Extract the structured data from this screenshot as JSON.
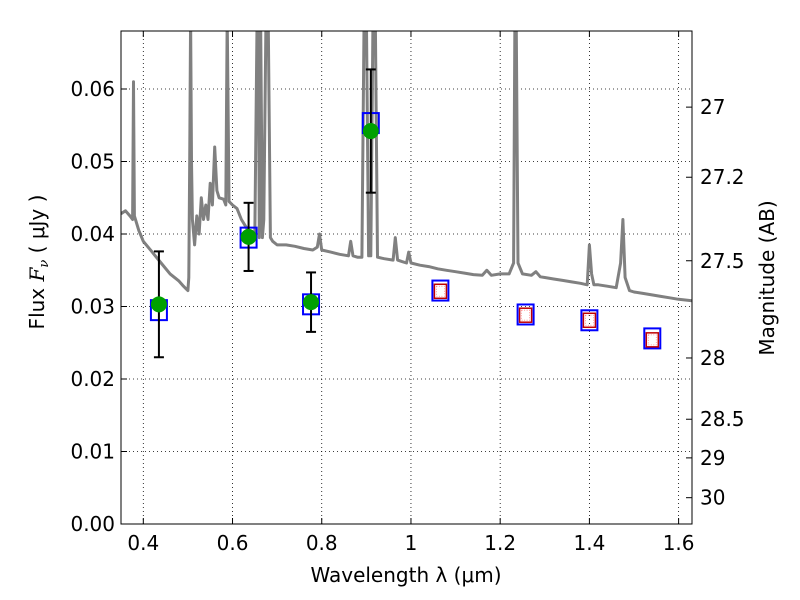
{
  "chart_data": {
    "type": "scatter",
    "xlabel": "Wavelength  λ (μm)",
    "ylabel": "Flux  F_ν  ( μJy )",
    "ylabel_parts": {
      "prefix": "Flux  ",
      "symbol": "F",
      "subscript": "ν",
      "unit": "  ( μJy )"
    },
    "y2label": "Magnitude (AB)",
    "xlim": [
      0.35,
      1.63
    ],
    "ylim": [
      0.0,
      0.068
    ],
    "grid": true,
    "x_ticks": [
      0.4,
      0.6,
      0.8,
      1.0,
      1.2,
      1.4,
      1.6
    ],
    "x_tick_labels": [
      "0.4",
      "0.6",
      "0.8",
      "1",
      "1.2",
      "1.4",
      "1.6"
    ],
    "y_ticks": [
      0.0,
      0.01,
      0.02,
      0.03,
      0.04,
      0.05,
      0.06
    ],
    "y_tick_labels": [
      "0.00",
      "0.01",
      "0.02",
      "0.03",
      "0.04",
      "0.05",
      "0.06"
    ],
    "y2_ticks": [
      {
        "label": "27",
        "flux": 0.0575
      },
      {
        "label": "27.2",
        "flux": 0.04783
      },
      {
        "label": "27.5",
        "flux": 0.03631
      },
      {
        "label": "28",
        "flux": 0.0229
      },
      {
        "label": "28.5",
        "flux": 0.01445
      },
      {
        "label": "29",
        "flux": 0.00912
      },
      {
        "label": "30",
        "flux": 0.00363
      }
    ],
    "series": [
      {
        "name": "",
        "style": "model-spectrum",
        "color": "#808080",
        "points": [
          [
            0.35,
            0.0428
          ],
          [
            0.36,
            0.0432
          ],
          [
            0.37,
            0.0425
          ],
          [
            0.376,
            0.042
          ],
          [
            0.378,
            0.061
          ],
          [
            0.38,
            0.0425
          ],
          [
            0.39,
            0.0405
          ],
          [
            0.4,
            0.039
          ],
          [
            0.42,
            0.0375
          ],
          [
            0.44,
            0.036
          ],
          [
            0.46,
            0.0345
          ],
          [
            0.48,
            0.0335
          ],
          [
            0.49,
            0.0328
          ],
          [
            0.495,
            0.0325
          ],
          [
            0.5,
            0.0322
          ],
          [
            0.502,
            0.034
          ],
          [
            0.504,
            0.05
          ],
          [
            0.506,
            0.07
          ],
          [
            0.508,
            0.05
          ],
          [
            0.51,
            0.042
          ],
          [
            0.515,
            0.0385
          ],
          [
            0.52,
            0.0425
          ],
          [
            0.525,
            0.04
          ],
          [
            0.53,
            0.045
          ],
          [
            0.535,
            0.042
          ],
          [
            0.54,
            0.044
          ],
          [
            0.545,
            0.042
          ],
          [
            0.55,
            0.047
          ],
          [
            0.555,
            0.044
          ],
          [
            0.56,
            0.052
          ],
          [
            0.565,
            0.046
          ],
          [
            0.57,
            0.045
          ],
          [
            0.58,
            0.0448
          ],
          [
            0.585,
            0.044
          ],
          [
            0.588,
            0.07
          ],
          [
            0.592,
            0.0445
          ],
          [
            0.6,
            0.044
          ],
          [
            0.61,
            0.0435
          ],
          [
            0.62,
            0.042
          ],
          [
            0.63,
            0.041
          ],
          [
            0.64,
            0.04
          ],
          [
            0.65,
            0.0395
          ],
          [
            0.655,
            0.07
          ],
          [
            0.658,
            0.07
          ],
          [
            0.66,
            0.0395
          ],
          [
            0.663,
            0.07
          ],
          [
            0.667,
            0.0395
          ],
          [
            0.67,
            0.042
          ],
          [
            0.675,
            0.07
          ],
          [
            0.68,
            0.07
          ],
          [
            0.685,
            0.0395
          ],
          [
            0.69,
            0.039
          ],
          [
            0.7,
            0.0385
          ],
          [
            0.72,
            0.0385
          ],
          [
            0.74,
            0.0383
          ],
          [
            0.76,
            0.038
          ],
          [
            0.78,
            0.0378
          ],
          [
            0.79,
            0.0382
          ],
          [
            0.795,
            0.04
          ],
          [
            0.8,
            0.0378
          ],
          [
            0.82,
            0.0375
          ],
          [
            0.84,
            0.0372
          ],
          [
            0.86,
            0.037
          ],
          [
            0.865,
            0.039
          ],
          [
            0.87,
            0.037
          ],
          [
            0.88,
            0.0368
          ],
          [
            0.89,
            0.0368
          ],
          [
            0.895,
            0.07
          ],
          [
            0.9,
            0.07
          ],
          [
            0.905,
            0.037
          ],
          [
            0.91,
            0.037
          ],
          [
            0.915,
            0.07
          ],
          [
            0.92,
            0.07
          ],
          [
            0.925,
            0.0368
          ],
          [
            0.94,
            0.0366
          ],
          [
            0.96,
            0.0364
          ],
          [
            0.965,
            0.0395
          ],
          [
            0.97,
            0.0364
          ],
          [
            0.98,
            0.0362
          ],
          [
            0.99,
            0.036
          ],
          [
            0.995,
            0.0375
          ],
          [
            1.0,
            0.036
          ],
          [
            1.02,
            0.0357
          ],
          [
            1.04,
            0.0355
          ],
          [
            1.06,
            0.0352
          ],
          [
            1.08,
            0.035
          ],
          [
            1.1,
            0.0348
          ],
          [
            1.12,
            0.0346
          ],
          [
            1.14,
            0.0344
          ],
          [
            1.16,
            0.0343
          ],
          [
            1.17,
            0.035
          ],
          [
            1.18,
            0.0343
          ],
          [
            1.2,
            0.0345
          ],
          [
            1.22,
            0.0345
          ],
          [
            1.23,
            0.036
          ],
          [
            1.233,
            0.07
          ],
          [
            1.236,
            0.07
          ],
          [
            1.24,
            0.036
          ],
          [
            1.25,
            0.0345
          ],
          [
            1.27,
            0.0343
          ],
          [
            1.28,
            0.0348
          ],
          [
            1.29,
            0.0341
          ],
          [
            1.3,
            0.034
          ],
          [
            1.32,
            0.0338
          ],
          [
            1.34,
            0.0336
          ],
          [
            1.36,
            0.0334
          ],
          [
            1.38,
            0.0332
          ],
          [
            1.395,
            0.033
          ],
          [
            1.4,
            0.0385
          ],
          [
            1.405,
            0.0345
          ],
          [
            1.41,
            0.033
          ],
          [
            1.42,
            0.033
          ],
          [
            1.44,
            0.0328
          ],
          [
            1.46,
            0.0326
          ],
          [
            1.47,
            0.036
          ],
          [
            1.475,
            0.042
          ],
          [
            1.48,
            0.034
          ],
          [
            1.49,
            0.0322
          ],
          [
            1.5,
            0.032
          ],
          [
            1.52,
            0.0318
          ],
          [
            1.54,
            0.0316
          ],
          [
            1.56,
            0.0314
          ],
          [
            1.58,
            0.0312
          ],
          [
            1.6,
            0.031
          ],
          [
            1.63,
            0.0308
          ]
        ]
      },
      {
        "name": "",
        "style": "model-photometry",
        "color": "#0000ff",
        "marker": "open-square",
        "x": [
          0.435,
          0.636,
          0.776,
          0.91,
          1.066,
          1.257,
          1.4,
          1.541
        ],
        "y": [
          0.0295,
          0.0395,
          0.0303,
          0.0553,
          0.0322,
          0.0289,
          0.0281,
          0.0256
        ]
      },
      {
        "name": "",
        "style": "observed",
        "color": "#00a000",
        "marker": "filled-circle",
        "x": [
          0.435,
          0.636,
          0.776,
          0.91
        ],
        "y": [
          0.0303,
          0.0396,
          0.0306,
          0.0542
        ],
        "yerr": [
          0.0073,
          0.0047,
          0.0041,
          0.0085
        ]
      },
      {
        "name": "",
        "style": "upper-limits",
        "color": "#c00000",
        "marker": "open-square",
        "x": [
          1.066,
          1.257,
          1.4,
          1.541
        ],
        "y": [
          0.0321,
          0.0288,
          0.0281,
          0.0254
        ]
      }
    ]
  }
}
